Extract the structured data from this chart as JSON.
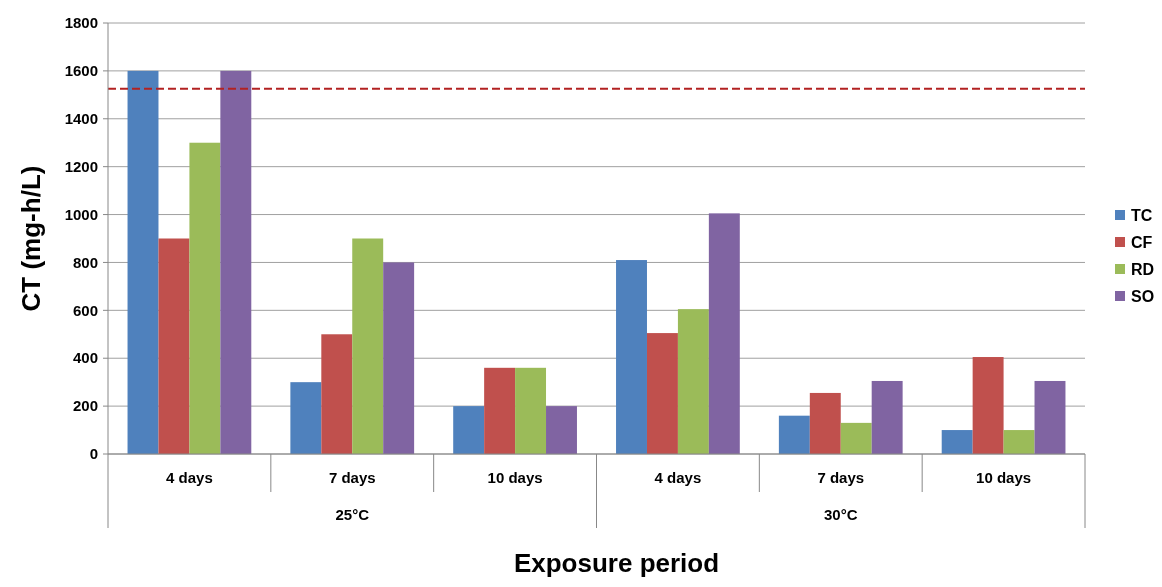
{
  "chart_data": {
    "type": "bar",
    "xlabel": "Exposure period",
    "ylabel": "CT (mg-h/L)",
    "categories": [
      "4 days",
      "7 days",
      "10 days",
      "4 days",
      "7 days",
      "10 days"
    ],
    "series": [
      {
        "name": "TC",
        "color": "#4f81bd",
        "values": [
          1600,
          300,
          200,
          810,
          160,
          100
        ]
      },
      {
        "name": "CF",
        "color": "#c0504d",
        "values": [
          900,
          500,
          360,
          505,
          255,
          405
        ]
      },
      {
        "name": "RD",
        "color": "#9bbb59",
        "values": [
          1300,
          900,
          360,
          605,
          130,
          100
        ]
      },
      {
        "name": "SO",
        "color": "#8064a2",
        "values": [
          1600,
          800,
          200,
          1005,
          305,
          305
        ]
      }
    ],
    "ylim": [
      0,
      1800
    ],
    "yticks": [
      0,
      200,
      400,
      600,
      800,
      1000,
      1200,
      1400,
      1600,
      1800
    ],
    "grid": "y",
    "legend": "right",
    "ref_lines": [
      {
        "axis": "y",
        "value": 1525,
        "color": "#b22222",
        "line_style": "dashed"
      }
    ],
    "annotations": [
      "25°C",
      "30°C"
    ]
  }
}
